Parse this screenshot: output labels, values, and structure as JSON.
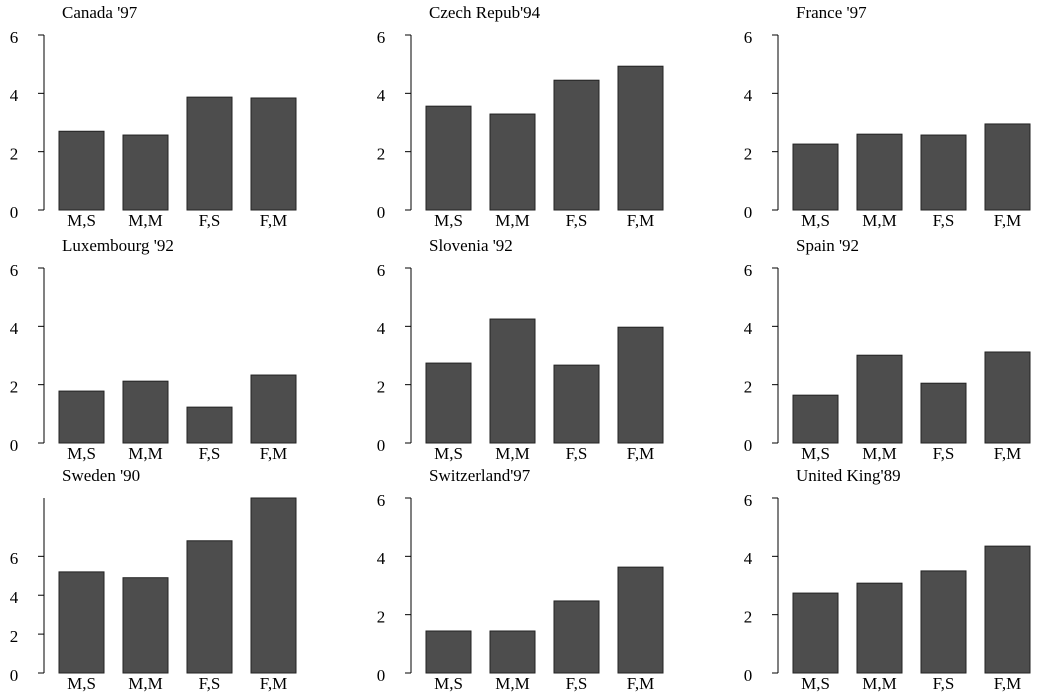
{
  "chart_data": [
    {
      "type": "bar",
      "title": "Canada '97",
      "categories": [
        "M,S",
        "M,M",
        "F,S",
        "F,M"
      ],
      "values": [
        2.7,
        2.57,
        3.87,
        3.84
      ],
      "ylim": [
        0,
        6
      ],
      "yticks": [
        0,
        2,
        4,
        6
      ],
      "color": "#4d4d4d"
    },
    {
      "type": "bar",
      "title": "Czech Repub'94",
      "categories": [
        "M,S",
        "M,M",
        "F,S",
        "F,M"
      ],
      "values": [
        3.56,
        3.29,
        4.45,
        4.93
      ],
      "ylim": [
        0,
        6
      ],
      "yticks": [
        0,
        2,
        4,
        6
      ],
      "color": "#4d4d4d"
    },
    {
      "type": "bar",
      "title": "France '97",
      "categories": [
        "M,S",
        "M,M",
        "F,S",
        "F,M"
      ],
      "values": [
        2.26,
        2.6,
        2.57,
        2.95
      ],
      "ylim": [
        0,
        6
      ],
      "yticks": [
        0,
        2,
        4,
        6
      ],
      "color": "#4d4d4d"
    },
    {
      "type": "bar",
      "title": "Luxembourg '92",
      "categories": [
        "M,S",
        "M,M",
        "F,S",
        "F,M"
      ],
      "values": [
        1.78,
        2.12,
        1.23,
        2.33
      ],
      "ylim": [
        0,
        6
      ],
      "yticks": [
        0,
        2,
        4,
        6
      ],
      "color": "#4d4d4d"
    },
    {
      "type": "bar",
      "title": "Slovenia '92",
      "categories": [
        "M,S",
        "M,M",
        "F,S",
        "F,M"
      ],
      "values": [
        2.74,
        4.25,
        2.67,
        3.97
      ],
      "ylim": [
        0,
        6
      ],
      "yticks": [
        0,
        2,
        4,
        6
      ],
      "color": "#4d4d4d"
    },
    {
      "type": "bar",
      "title": "Spain '92",
      "categories": [
        "M,S",
        "M,M",
        "F,S",
        "F,M"
      ],
      "values": [
        1.64,
        3.01,
        2.05,
        3.12
      ],
      "ylim": [
        0,
        6
      ],
      "yticks": [
        0,
        2,
        4,
        6
      ],
      "color": "#4d4d4d"
    },
    {
      "type": "bar",
      "title": "Sweden '90",
      "categories": [
        "M,S",
        "M,M",
        "F,S",
        "F,M"
      ],
      "values": [
        5.2,
        4.9,
        6.8,
        9.0
      ],
      "ylim": [
        0,
        9
      ],
      "yticks": [
        0,
        2,
        4,
        6
      ],
      "color": "#4d4d4d"
    },
    {
      "type": "bar",
      "title": "Switzerland'97",
      "categories": [
        "M,S",
        "M,M",
        "F,S",
        "F,M"
      ],
      "values": [
        1.44,
        1.44,
        2.47,
        3.63
      ],
      "ylim": [
        0,
        6
      ],
      "yticks": [
        0,
        2,
        4,
        6
      ],
      "color": "#4d4d4d"
    },
    {
      "type": "bar",
      "title": "United King'89",
      "categories": [
        "M,S",
        "M,M",
        "F,S",
        "F,M"
      ],
      "values": [
        2.74,
        3.08,
        3.5,
        4.35
      ],
      "ylim": [
        0,
        6
      ],
      "yticks": [
        0,
        2,
        4,
        6
      ],
      "color": "#4d4d4d"
    }
  ]
}
